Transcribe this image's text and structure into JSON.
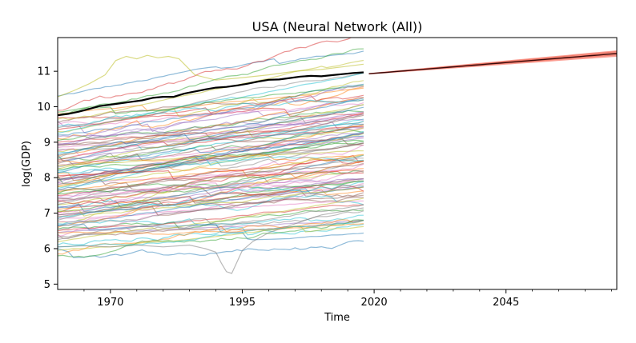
{
  "chart_data": {
    "type": "line",
    "title": "USA (Neural Network (All))",
    "xlabel": "Time",
    "ylabel": "log(GDP)",
    "xlim": [
      1960,
      2066
    ],
    "ylim": [
      4.85,
      11.95
    ],
    "x_ticks": [
      1970,
      1995,
      2020,
      2045
    ],
    "x_tick_labels": [
      "1970",
      "1995",
      "2020",
      "2045"
    ],
    "y_ticks": [
      5,
      6,
      7,
      8,
      9,
      10,
      11
    ],
    "y_tick_labels": [
      "5",
      "6",
      "7",
      "8",
      "9",
      "10",
      "11"
    ],
    "grid": false,
    "legend": "none",
    "colors": {
      "usa": "#000000",
      "forecast_band": "#fa8072",
      "forecast_line": "#c0392b",
      "palette": [
        "#1f77b4",
        "#ff7f0e",
        "#2ca02c",
        "#d62728",
        "#9467bd",
        "#8c564b",
        "#e377c2",
        "#7f7f7f",
        "#bcbd22",
        "#17becf"
      ]
    },
    "background_series": {
      "description": "About 110 other countries' historical log(GDP), 1960-2018, drawn as thin semi-transparent lines; start values shown, each drifts upward with yearly noise",
      "years": [
        1960,
        2018
      ],
      "count": 110,
      "start_values": [
        10.3,
        9.8,
        9.75,
        9.7,
        9.6,
        9.55,
        9.5,
        9.4,
        9.3,
        9.25,
        9.2,
        9.1,
        9.05,
        9.0,
        8.95,
        8.9,
        8.85,
        8.8,
        8.75,
        8.7,
        8.65,
        8.6,
        8.55,
        8.5,
        8.45,
        8.4,
        8.35,
        8.3,
        8.25,
        8.2,
        8.15,
        8.1,
        8.05,
        8.0,
        7.95,
        7.9,
        7.85,
        7.8,
        7.75,
        7.7,
        7.65,
        7.6,
        7.55,
        7.5,
        7.45,
        7.4,
        7.35,
        7.3,
        7.25,
        7.2,
        7.15,
        7.1,
        7.05,
        7.0,
        6.95,
        6.9,
        6.85,
        6.8,
        6.75,
        6.7,
        6.65,
        6.6,
        6.55,
        6.5,
        6.45,
        6.4,
        6.35,
        6.3,
        6.2,
        6.1,
        6.0,
        5.85,
        5.8,
        9.35,
        9.15,
        8.95,
        8.75,
        8.55,
        8.35,
        8.15,
        7.95,
        7.75,
        7.55,
        7.35,
        7.15,
        6.95,
        6.75,
        6.55,
        9.65,
        9.45,
        8.65,
        8.45,
        8.25,
        8.05,
        7.85,
        7.65,
        7.45,
        7.25,
        7.05,
        6.85,
        6.65,
        6.45,
        9.85,
        9.9,
        8.92,
        7.95,
        7.02,
        6.25,
        5.95,
        6.05
      ]
    },
    "series": [
      {
        "name": "USA",
        "x": [
          1960,
          1962,
          1964,
          1966,
          1968,
          1970,
          1972,
          1974,
          1976,
          1978,
          1980,
          1982,
          1984,
          1986,
          1988,
          1990,
          1992,
          1994,
          1996,
          1998,
          2000,
          2002,
          2004,
          2006,
          2008,
          2010,
          2012,
          2014,
          2016,
          2018
        ],
        "y": [
          9.76,
          9.8,
          9.86,
          9.94,
          10.02,
          10.06,
          10.1,
          10.14,
          10.18,
          10.25,
          10.28,
          10.28,
          10.37,
          10.43,
          10.49,
          10.54,
          10.56,
          10.6,
          10.65,
          10.71,
          10.76,
          10.77,
          10.81,
          10.85,
          10.87,
          10.86,
          10.89,
          10.92,
          10.95,
          10.97
        ]
      },
      {
        "name": "Forecast",
        "x": [
          2019,
          2066
        ],
        "y": [
          10.93,
          11.5
        ],
        "band_halfwidth": [
          0.02,
          0.09
        ]
      }
    ],
    "highlight_traces": [
      {
        "name": "peak-trace",
        "x": [
          1960,
          1963,
          1966,
          1969,
          1971,
          1973,
          1975,
          1977,
          1979,
          1981,
          1983,
          1986,
          1990,
          1995,
          2000,
          2005,
          2010,
          2018
        ],
        "y": [
          10.28,
          10.45,
          10.65,
          10.9,
          11.3,
          11.42,
          11.35,
          11.45,
          11.38,
          11.42,
          11.35,
          10.9,
          10.75,
          10.82,
          10.9,
          11.0,
          11.05,
          11.2
        ]
      },
      {
        "name": "dip-trace",
        "x": [
          1960,
          1965,
          1970,
          1975,
          1980,
          1985,
          1988,
          1990,
          1991,
          1992,
          1993,
          1995,
          1997,
          2000,
          2005,
          2010,
          2018
        ],
        "y": [
          6.05,
          6.08,
          6.05,
          6.1,
          6.05,
          6.1,
          6.0,
          5.9,
          5.6,
          5.35,
          5.3,
          5.95,
          6.2,
          6.45,
          6.7,
          6.95,
          7.15
        ]
      }
    ]
  }
}
